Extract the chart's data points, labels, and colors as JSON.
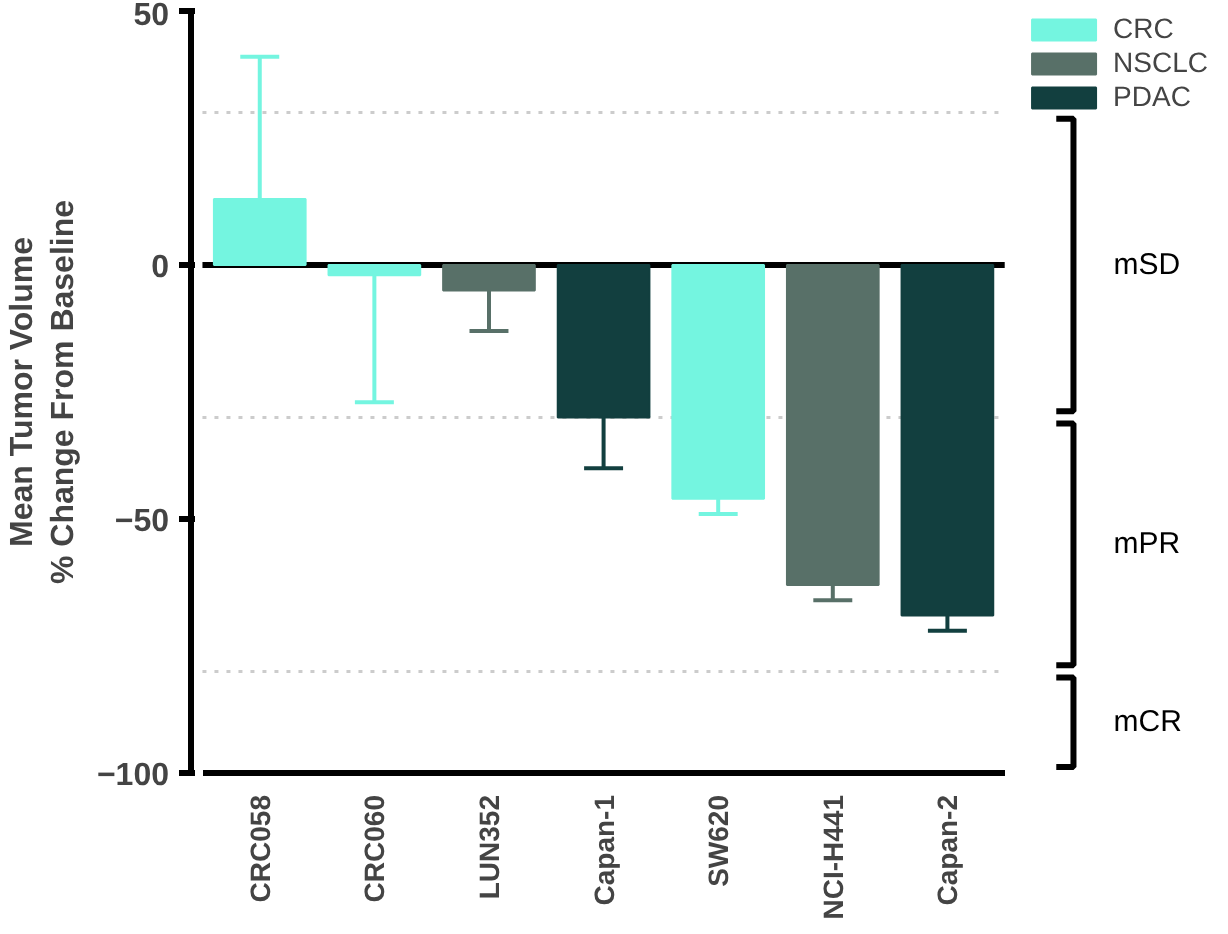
{
  "chart_data": {
    "type": "bar",
    "ylabel": "Mean Tumor Volume\n% Change From Baseline",
    "categories": [
      "CRC058",
      "CRC060",
      "LUN352",
      "Capan-1",
      "SW620",
      "NCI-H441",
      "Capan-2"
    ],
    "series": [
      {
        "name": "CRC",
        "color": "#74f5e0",
        "values": [
          13,
          -2,
          null,
          null,
          -46,
          null,
          null
        ],
        "errors": [
          [
            13,
            41
          ],
          [
            -27,
            -2
          ],
          null,
          null,
          [
            -49,
            -46
          ],
          null,
          null
        ]
      },
      {
        "name": "NSCLC",
        "color": "#587068",
        "values": [
          null,
          null,
          -5,
          null,
          null,
          -63,
          null
        ],
        "errors": [
          null,
          null,
          [
            -13,
            -5
          ],
          null,
          null,
          [
            -66,
            -63
          ],
          null
        ]
      },
      {
        "name": "PDAC",
        "color": "#123f3f",
        "values": [
          null,
          null,
          null,
          -30,
          null,
          null,
          -69
        ],
        "errors": [
          null,
          null,
          null,
          [
            -40,
            -30
          ],
          null,
          null,
          [
            -72,
            -69
          ]
        ]
      }
    ],
    "ylim": [
      -100,
      50
    ],
    "yticks": [
      -100,
      -50,
      0,
      50
    ],
    "ref_lines": [
      {
        "axis": "y",
        "value": 0,
        "line_style": "solid",
        "color": "#000000"
      },
      {
        "axis": "y",
        "value": 30,
        "line_style": "dotted",
        "color": "#cccccc"
      },
      {
        "axis": "y",
        "value": -30,
        "line_style": "dotted",
        "color": "#cccccc"
      },
      {
        "axis": "y",
        "value": -80,
        "line_style": "dotted",
        "color": "#cccccc"
      }
    ],
    "annotations": [
      "mSD",
      "mPR",
      "mCR"
    ],
    "legend": "top right",
    "grid": false
  }
}
